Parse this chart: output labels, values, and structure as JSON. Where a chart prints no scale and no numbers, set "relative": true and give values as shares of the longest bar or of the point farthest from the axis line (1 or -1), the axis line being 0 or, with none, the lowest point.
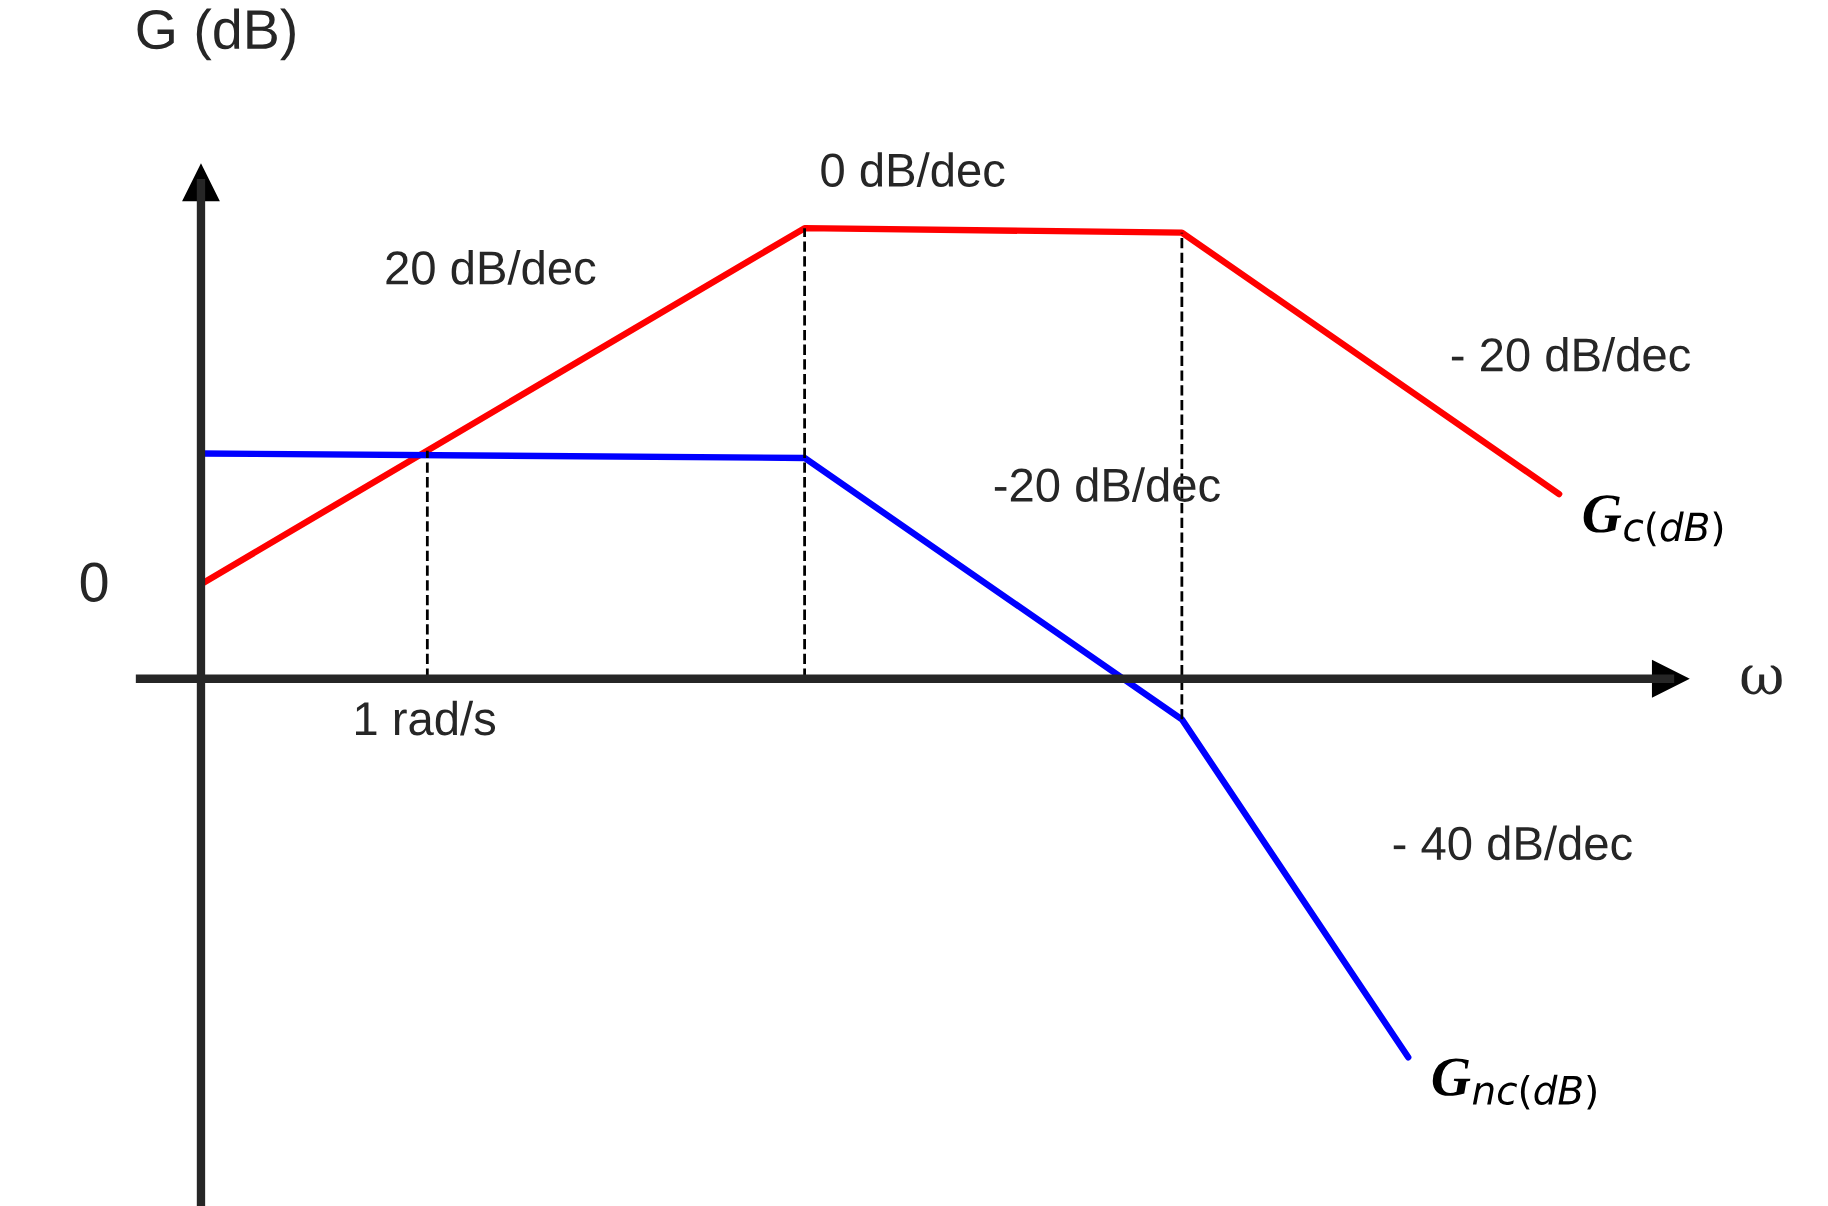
{
  "chart_data": {
    "type": "line",
    "relative": true,
    "xlabel": "ω",
    "ylabel": "G (dB)",
    "categories": [
      null,
      null,
      null,
      null,
      null,
      null,
      null,
      null,
      null,
      null,
      null,
      null,
      null,
      null,
      null,
      null,
      null,
      null,
      null
    ],
    "legend": false,
    "grid": false,
    "marker": "none",
    "line_style": "solid",
    "series": [
      {
        "name": "G$_{c(dB)}$",
        "color": "#ff0000",
        "values": [
          0.21,
          null,
          null,
          null,
          null,
          null,
          null,
          null,
          1.0,
          null,
          null,
          null,
          null,
          0.99,
          null,
          null,
          null,
          null,
          0.41
        ]
      },
      {
        "name": "G$_{nc(dB)}$",
        "color": "#0000ff",
        "values": [
          0.5,
          null,
          null,
          null,
          null,
          null,
          null,
          null,
          0.49,
          null,
          null,
          null,
          null,
          -0.09,
          null,
          null,
          -0.84,
          null,
          null
        ]
      }
    ],
    "annotations": [
      "0",
      "1 rad/s",
      "20 dB/dec",
      "0 dB/dec",
      "- 20 dB/dec",
      "-20 dB/dec",
      "- 40 dB/dec"
    ]
  }
}
